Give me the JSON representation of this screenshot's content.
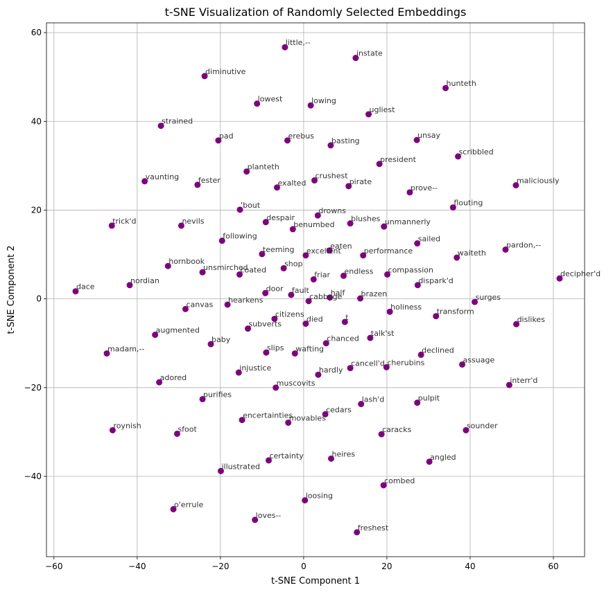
{
  "chart_data": {
    "type": "scatter",
    "title": "t-SNE Visualization of Randomly Selected Embeddings",
    "xlabel": "t-SNE Component 1",
    "ylabel": "t-SNE Component 2",
    "xlim": [
      -61.8,
      67.5
    ],
    "ylim": [
      -58.1,
      62.2
    ],
    "xticks": [
      -60,
      -40,
      -20,
      0,
      20,
      40,
      60
    ],
    "yticks": [
      -40,
      -20,
      0,
      20,
      40,
      60
    ],
    "xtick_labels": [
      "−60",
      "−40",
      "−20",
      "0",
      "20",
      "40",
      "60"
    ],
    "ytick_labels": [
      "−40",
      "−20",
      "0",
      "20",
      "40",
      "60"
    ],
    "grid": true,
    "point_color": "#800080",
    "label_color": "#333333",
    "points": [
      {
        "label": "little,--",
        "x": -4.5,
        "y": 56.7
      },
      {
        "label": "instate",
        "x": 12.5,
        "y": 54.3
      },
      {
        "label": "diminutive",
        "x": -23.8,
        "y": 50.2
      },
      {
        "label": "hunteth",
        "x": 34.1,
        "y": 47.5
      },
      {
        "label": "lowest",
        "x": -11.2,
        "y": 44.0
      },
      {
        "label": "lowing",
        "x": 1.7,
        "y": 43.6
      },
      {
        "label": "ugliest",
        "x": 15.6,
        "y": 41.6
      },
      {
        "label": "strained",
        "x": -34.3,
        "y": 39.0
      },
      {
        "label": "pad",
        "x": -20.5,
        "y": 35.7
      },
      {
        "label": "erebus",
        "x": -3.9,
        "y": 35.7
      },
      {
        "label": "basting",
        "x": 6.5,
        "y": 34.6
      },
      {
        "label": "unsay",
        "x": 27.2,
        "y": 35.8
      },
      {
        "label": "scribbled",
        "x": 37.1,
        "y": 32.1
      },
      {
        "label": "president",
        "x": 18.2,
        "y": 30.4
      },
      {
        "label": "planteth",
        "x": -13.7,
        "y": 28.7
      },
      {
        "label": "vaunting",
        "x": -38.2,
        "y": 26.5
      },
      {
        "label": "fester",
        "x": -25.5,
        "y": 25.7
      },
      {
        "label": "exalted",
        "x": -6.4,
        "y": 25.1
      },
      {
        "label": "crushest",
        "x": 2.6,
        "y": 26.7
      },
      {
        "label": "pirate",
        "x": 10.8,
        "y": 25.4
      },
      {
        "label": "prove--",
        "x": 25.5,
        "y": 24.0
      },
      {
        "label": "maliciously",
        "x": 51.0,
        "y": 25.6
      },
      {
        "label": "'bout",
        "x": -15.3,
        "y": 20.1
      },
      {
        "label": "flouting",
        "x": 35.9,
        "y": 20.6
      },
      {
        "label": "trick'd",
        "x": -46.1,
        "y": 16.5
      },
      {
        "label": "nevils",
        "x": -29.4,
        "y": 16.5
      },
      {
        "label": "despair",
        "x": -9.1,
        "y": 17.3
      },
      {
        "label": "drowns",
        "x": 3.4,
        "y": 18.8
      },
      {
        "label": "benumbed",
        "x": -2.6,
        "y": 15.7
      },
      {
        "label": "blushes",
        "x": 11.2,
        "y": 17.0
      },
      {
        "label": "unmannerly",
        "x": 19.3,
        "y": 16.3
      },
      {
        "label": "following",
        "x": -19.6,
        "y": 13.1
      },
      {
        "label": "sailed",
        "x": 27.3,
        "y": 12.5
      },
      {
        "label": "pardon,--",
        "x": 48.5,
        "y": 11.1
      },
      {
        "label": "teeming",
        "x": -10.0,
        "y": 10.1
      },
      {
        "label": "excellent",
        "x": 0.5,
        "y": 9.8
      },
      {
        "label": "eaten",
        "x": 6.2,
        "y": 10.9
      },
      {
        "label": "performance",
        "x": 14.3,
        "y": 9.8
      },
      {
        "label": "waiteth",
        "x": 36.8,
        "y": 9.3
      },
      {
        "label": "hornbook",
        "x": -32.6,
        "y": 7.4
      },
      {
        "label": "unsmirched",
        "x": -24.3,
        "y": 6.0
      },
      {
        "label": "coated",
        "x": -15.4,
        "y": 5.5
      },
      {
        "label": "shop",
        "x": -4.8,
        "y": 6.9
      },
      {
        "label": "endless",
        "x": 9.6,
        "y": 5.2
      },
      {
        "label": "compassion",
        "x": 20.1,
        "y": 5.5
      },
      {
        "label": "friar",
        "x": 2.4,
        "y": 4.4
      },
      {
        "label": "dace",
        "x": -54.8,
        "y": 1.7
      },
      {
        "label": "nordian",
        "x": -41.8,
        "y": 3.1
      },
      {
        "label": "dispark'd",
        "x": 27.4,
        "y": 3.1
      },
      {
        "label": "decipher'd",
        "x": 61.5,
        "y": 4.6
      },
      {
        "label": "door",
        "x": -9.2,
        "y": 1.3
      },
      {
        "label": "fault",
        "x": -3.0,
        "y": 0.9
      },
      {
        "label": "half",
        "x": 6.3,
        "y": 0.3
      },
      {
        "label": "brazen",
        "x": 13.6,
        "y": 0.1
      },
      {
        "label": "cabbage",
        "x": 1.2,
        "y": -0.5
      },
      {
        "label": "hearkens",
        "x": -18.3,
        "y": -1.3
      },
      {
        "label": "surges",
        "x": 41.1,
        "y": -0.7
      },
      {
        "label": "canvas",
        "x": -28.4,
        "y": -2.3
      },
      {
        "label": "holiness",
        "x": 20.7,
        "y": -2.9
      },
      {
        "label": "transform",
        "x": 31.8,
        "y": -3.9
      },
      {
        "label": "citizens",
        "x": -7.0,
        "y": -4.5
      },
      {
        "label": "died",
        "x": 0.5,
        "y": -5.6
      },
      {
        "label": "t",
        "x": 9.9,
        "y": -5.2
      },
      {
        "label": "dislikes",
        "x": 51.1,
        "y": -5.7
      },
      {
        "label": "subverts",
        "x": -13.4,
        "y": -6.7
      },
      {
        "label": "augmented",
        "x": -35.7,
        "y": -8.1
      },
      {
        "label": "talk'st",
        "x": 16.0,
        "y": -8.8
      },
      {
        "label": "baby",
        "x": -22.3,
        "y": -10.2
      },
      {
        "label": "chanced",
        "x": 5.4,
        "y": -10.0
      },
      {
        "label": "slips",
        "x": -9.0,
        "y": -12.1
      },
      {
        "label": "wafting",
        "x": -2.1,
        "y": -12.3
      },
      {
        "label": "declined",
        "x": 28.2,
        "y": -12.6
      },
      {
        "label": "madam,--",
        "x": -47.3,
        "y": -12.3
      },
      {
        "label": "assuage",
        "x": 38.1,
        "y": -14.8
      },
      {
        "label": "cancell'd",
        "x": 11.2,
        "y": -15.6
      },
      {
        "label": "cherubins",
        "x": 19.9,
        "y": -15.4
      },
      {
        "label": "injustice",
        "x": -15.6,
        "y": -16.6
      },
      {
        "label": "hardly",
        "x": 3.5,
        "y": -17.1
      },
      {
        "label": "adored",
        "x": -34.7,
        "y": -18.8
      },
      {
        "label": "interr'd",
        "x": 49.4,
        "y": -19.4
      },
      {
        "label": "muscovits",
        "x": -6.7,
        "y": -20.0
      },
      {
        "label": "purifies",
        "x": -24.3,
        "y": -22.6
      },
      {
        "label": "lash'd",
        "x": 13.8,
        "y": -23.7
      },
      {
        "label": "pulpit",
        "x": 27.3,
        "y": -23.4
      },
      {
        "label": "encertainties",
        "x": -14.8,
        "y": -27.3
      },
      {
        "label": "movables",
        "x": -3.7,
        "y": -27.9
      },
      {
        "label": "cedars",
        "x": 5.2,
        "y": -26.0
      },
      {
        "label": "roynish",
        "x": -45.9,
        "y": -29.6
      },
      {
        "label": "sfoot",
        "x": -30.4,
        "y": -30.4
      },
      {
        "label": "caracks",
        "x": 18.7,
        "y": -30.5
      },
      {
        "label": "sounder",
        "x": 39.0,
        "y": -29.6
      },
      {
        "label": "certainty",
        "x": -8.4,
        "y": -36.4
      },
      {
        "label": "heires",
        "x": 6.6,
        "y": -36.0
      },
      {
        "label": "angled",
        "x": 30.2,
        "y": -36.7
      },
      {
        "label": "illustrated",
        "x": -19.9,
        "y": -38.8
      },
      {
        "label": "combed",
        "x": 19.2,
        "y": -42.0
      },
      {
        "label": "loosing",
        "x": 0.3,
        "y": -45.4
      },
      {
        "label": "o'errule",
        "x": -31.3,
        "y": -47.4
      },
      {
        "label": "loves--",
        "x": -11.7,
        "y": -49.8
      },
      {
        "label": "freshest",
        "x": 12.8,
        "y": -52.6
      }
    ]
  }
}
